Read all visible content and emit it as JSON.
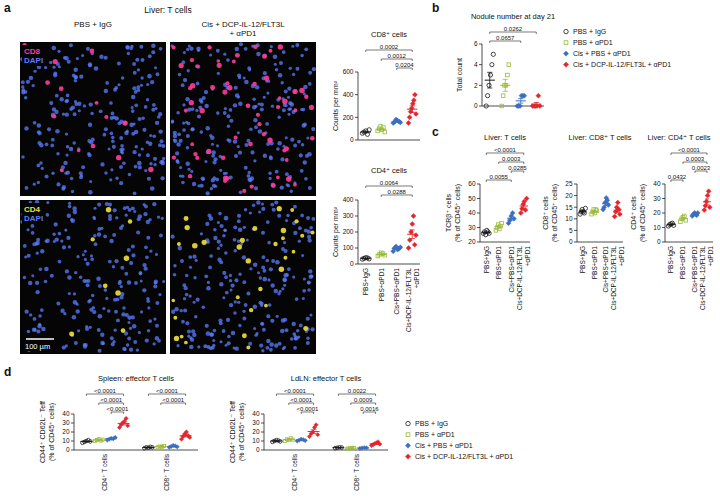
{
  "panel_labels": [
    "a",
    "b",
    "c",
    "d"
  ],
  "micrograph": {
    "title": "Liver: T cells",
    "columns": [
      "PBS + IgG",
      "Cis + DCP-IL-12/FLT3L\n+ αPD1"
    ],
    "rows": [
      {
        "stain": "CD8",
        "stain_color": "#ff3d9a",
        "counterstain": "DAPI",
        "counterstain_color": "#5b7cff"
      },
      {
        "stain": "CD4",
        "stain_color": "#f2e23a",
        "counterstain": "DAPI",
        "counterstain_color": "#5b7cff"
      }
    ],
    "scale_bar": "100 µm"
  },
  "groups": [
    {
      "name": "PBS + IgG",
      "color": "#1a1a1a",
      "marker": "circle_open"
    },
    {
      "name": "PBS + αPD1",
      "color": "#9bbb3a",
      "marker": "square_open"
    },
    {
      "name": "Cis + PBS + αPD1",
      "color": "#3c6fc0",
      "marker": "diamond"
    },
    {
      "name": "Cis + DCP-IL-12/FLT3L + αPD1",
      "color": "#e3262d",
      "marker": "diamond"
    }
  ],
  "chart_data": [
    {
      "type": "dot",
      "title": "CD8⁺ cells",
      "y_label": "Counts per mm²",
      "tick_labels": "y",
      "categories": [
        null,
        null,
        null,
        null
      ],
      "ylim": [
        0,
        600
      ],
      "yticks": [
        0,
        200,
        400,
        600
      ],
      "points": [
        [
          60,
          70,
          80,
          50,
          90
        ],
        [
          80,
          100,
          120,
          90,
          110,
          70
        ],
        [
          150,
          160,
          180,
          170,
          165,
          155
        ],
        [
          150,
          200,
          250,
          280,
          320,
          350,
          400,
          230
        ]
      ],
      "mean": [
        70,
        95,
        163,
        272
      ],
      "error": [
        7,
        8,
        5,
        29
      ],
      "comparisons": [
        {
          "from": 0,
          "to": 3,
          "label": "0.0002"
        },
        {
          "from": 1,
          "to": 3,
          "label": "0.0012"
        },
        {
          "from": 2,
          "to": 3,
          "label": "0.0204"
        }
      ]
    },
    {
      "type": "dot",
      "title": "CD4⁺ cells",
      "y_label": "Counts per mm²",
      "categories": [
        "PBS+IgG",
        "PBS+αPD1",
        "Cis+PBS+αPD1",
        "Cis+DCP-IL-12/FLT3L\n+αPD1"
      ],
      "ylim": [
        0,
        400
      ],
      "yticks": [
        0,
        100,
        200,
        300,
        400
      ],
      "points": [
        [
          30,
          35,
          40,
          38,
          32
        ],
        [
          50,
          60,
          70,
          65,
          55
        ],
        [
          80,
          100,
          110,
          90,
          95,
          105
        ],
        [
          100,
          150,
          200,
          250,
          300,
          120,
          180
        ]
      ],
      "mean": [
        35,
        60,
        97,
        186
      ],
      "error": [
        2,
        4,
        5,
        27
      ],
      "comparisons": [
        {
          "from": 0,
          "to": 3,
          "label": "0.0064"
        },
        {
          "from": 1,
          "to": 3,
          "label": "0.0288"
        }
      ]
    },
    {
      "type": "dot",
      "title": "Nodule number at day 21",
      "y_label": "Total count",
      "tick_labels": "y",
      "legend": "right",
      "categories": [
        null,
        null,
        null,
        null
      ],
      "ylim": [
        0,
        6
      ],
      "yticks": [
        0,
        2,
        4,
        6
      ],
      "points": [
        [
          0,
          1,
          2,
          3,
          4,
          5
        ],
        [
          0,
          1,
          2,
          2,
          3,
          4
        ],
        [
          0,
          0,
          0,
          1,
          1,
          1
        ],
        [
          0,
          0,
          0,
          0,
          1,
          0
        ]
      ],
      "mean": [
        2.5,
        2.0,
        0.5,
        0.17
      ],
      "error": [
        0.76,
        0.58,
        0.22,
        0.17
      ],
      "comparisons": [
        {
          "from": 0,
          "to": 3,
          "label": "0.0262"
        },
        {
          "from": 0,
          "to": 2,
          "label": "0.0657"
        }
      ]
    },
    {
      "type": "dot",
      "title": "Liver: T cells",
      "y_label": "TCRβ⁺ cells\n(% of CD45⁺ cells)",
      "categories": [
        "PBS+IgG",
        "PBS+αPD1",
        "Cis+PBS+αPD1",
        "Cis+DCP-IL-12/FLT3L\n+αPD1"
      ],
      "ylim": [
        20,
        60
      ],
      "yticks": [
        20,
        30,
        40,
        50,
        60
      ],
      "points": [
        [
          26,
          27,
          25,
          28,
          27,
          26
        ],
        [
          28,
          30,
          32,
          29,
          31,
          33
        ],
        [
          33,
          35,
          38,
          40,
          36
        ],
        [
          40,
          43,
          46,
          48,
          42,
          50
        ]
      ],
      "mean": [
        26.5,
        30.5,
        36.4,
        44.8
      ],
      "error": [
        0.43,
        0.76,
        1.2,
        1.5
      ],
      "comparisons": [
        {
          "from": 0,
          "to": 3,
          "label": "<0.0001"
        },
        {
          "from": 1,
          "to": 3,
          "label": "0.0003"
        },
        {
          "from": 2,
          "to": 3,
          "label": "0.0285"
        },
        {
          "from": 0,
          "to": 2,
          "label": "0.0055"
        }
      ]
    },
    {
      "type": "dot",
      "title": "Liver: CD8⁺ T cells",
      "y_label": "CD8⁺ cells\n(% of CD45⁺ cells)",
      "categories": [
        "PBS+IgG",
        "PBS+αPD1",
        "Cis+PBS+αPD1",
        "Cis+DCP-IL-12/FLT3L\n+αPD1"
      ],
      "ylim": [
        0,
        25
      ],
      "yticks": [
        0,
        5,
        10,
        15,
        20,
        25
      ],
      "points": [
        [
          12,
          13,
          14,
          13,
          12.5,
          14.5
        ],
        [
          12,
          13,
          14,
          12.5,
          14,
          13.5
        ],
        [
          14,
          15,
          17,
          19,
          18,
          16
        ],
        [
          11,
          13,
          15,
          17,
          14,
          12
        ]
      ],
      "mean": [
        13.2,
        13.2,
        16.5,
        13.7
      ],
      "error": [
        0.4,
        0.33,
        0.76,
        0.88
      ],
      "comparisons": []
    },
    {
      "type": "dot",
      "title": "Liver: CD4⁺ T cells",
      "y_label": "CD4⁺ cells\n(% of CD45⁺ cells)",
      "categories": [
        "PBS+IgG",
        "PBS+αPD1",
        "Cis+PBS+αPD1",
        "Cis+DCP-IL-12/FLT3L\n+αPD1"
      ],
      "ylim": [
        0,
        40
      ],
      "yticks": [
        0,
        10,
        20,
        30,
        40
      ],
      "points": [
        [
          11,
          12,
          12.5,
          13,
          11.5
        ],
        [
          14,
          16,
          17,
          18,
          15
        ],
        [
          18,
          19,
          20,
          19.5,
          18.5,
          20
        ],
        [
          22,
          25,
          28,
          32,
          35,
          24
        ]
      ],
      "mean": [
        12,
        16,
        19.2,
        27.7
      ],
      "error": [
        0.35,
        0.71,
        0.33,
        2.0
      ],
      "comparisons": [
        {
          "from": 0,
          "to": 3,
          "label": "<0.0001"
        },
        {
          "from": 1,
          "to": 3,
          "label": "0.0003"
        },
        {
          "from": 2,
          "to": 3,
          "label": "0.0023"
        },
        {
          "from": 0,
          "to": 1,
          "label": "0.0432"
        }
      ]
    },
    {
      "type": "grouped_dot",
      "title": "Spleen: effector T cells",
      "y_label": "CD44⁺ CD62L⁻ Teff\n(% of CD45⁺ cells)",
      "categories": [
        "CD4⁺ T cells",
        "CD8⁺ T cells"
      ],
      "ylim": [
        0,
        40
      ],
      "yticks": [
        0,
        10,
        20,
        30,
        40
      ],
      "series": [
        {
          "points": [
            [
              8,
              9,
              10,
              11,
              9.5
            ],
            [
              2,
              3,
              2.5,
              3.5,
              3
            ]
          ],
          "mean": [
            9.5,
            2.8
          ],
          "error": [
            0.5,
            0.25
          ]
        },
        {
          "points": [
            [
              10,
              11,
              12,
              10.5,
              11.5
            ],
            [
              3,
              4,
              3.5,
              4.5
            ]
          ],
          "mean": [
            11,
            3.75
          ],
          "error": [
            0.35,
            0.32
          ]
        },
        {
          "points": [
            [
              11,
              12,
              13,
              12.5,
              14
            ],
            [
              3,
              4,
              5,
              4.5,
              3.5
            ]
          ],
          "mean": [
            12.5,
            4
          ],
          "error": [
            0.5,
            0.35
          ]
        },
        {
          "points": [
            [
              25,
              28,
              30,
              32,
              35,
              27
            ],
            [
              12,
              15,
              18,
              20,
              16,
              14
            ]
          ],
          "mean": [
            29.5,
            15.8
          ],
          "error": [
            1.5,
            1.2
          ]
        }
      ],
      "comparisons": [
        {
          "category": 0,
          "from": 0,
          "to": 3,
          "label": "<0.0001"
        },
        {
          "category": 0,
          "from": 1,
          "to": 3,
          "label": "<0.0001"
        },
        {
          "category": 0,
          "from": 2,
          "to": 3,
          "label": "<0.0001"
        },
        {
          "category": 1,
          "from": 0,
          "to": 3,
          "label": "<0.0001"
        },
        {
          "category": 1,
          "from": 1,
          "to": 3,
          "label": "<0.0001"
        }
      ]
    },
    {
      "type": "grouped_dot",
      "title": "LdLN: effector T cells",
      "y_label": "CD44⁺ CD62L⁻ Teff\n(% of CD45⁺ cells)",
      "legend": "right",
      "categories": [
        "CD4⁺ T cells",
        "CD8⁺ T cells"
      ],
      "ylim": [
        0,
        40
      ],
      "yticks": [
        0,
        10,
        20,
        30,
        40
      ],
      "series": [
        {
          "points": [
            [
              9,
              10,
              11,
              10.5,
              9.5
            ],
            [
              2,
              2.5,
              3,
              2.8
            ]
          ],
          "mean": [
            10,
            2.6
          ],
          "error": [
            0.35,
            0.22
          ]
        },
        {
          "points": [
            [
              10,
              12,
              11,
              13,
              11.5
            ],
            [
              1.5,
              2,
              2.5,
              2.2
            ]
          ],
          "mean": [
            11.5,
            2.05
          ],
          "error": [
            0.5,
            0.21
          ]
        },
        {
          "points": [
            [
              10,
              11,
              12,
              11.5,
              10.5
            ],
            [
              1.8,
              2.2,
              2.6,
              2.4
            ]
          ],
          "mean": [
            11,
            2.25
          ],
          "error": [
            0.35,
            0.17
          ]
        },
        {
          "points": [
            [
              15,
              18,
              20,
              25,
              28,
              17
            ],
            [
              5,
              6,
              7,
              8,
              9,
              6.5
            ]
          ],
          "mean": [
            20.5,
            6.9
          ],
          "error": [
            2.0,
            0.6
          ]
        }
      ],
      "comparisons": [
        {
          "category": 0,
          "from": 0,
          "to": 3,
          "label": "<0.0001"
        },
        {
          "category": 0,
          "from": 1,
          "to": 3,
          "label": "<0.0001"
        },
        {
          "category": 0,
          "from": 2,
          "to": 3,
          "label": "<0.0001"
        },
        {
          "category": 1,
          "from": 0,
          "to": 3,
          "label": "0.0022"
        },
        {
          "category": 1,
          "from": 1,
          "to": 3,
          "label": "0.0009"
        },
        {
          "category": 1,
          "from": 2,
          "to": 3,
          "label": "0.0016"
        }
      ]
    }
  ]
}
